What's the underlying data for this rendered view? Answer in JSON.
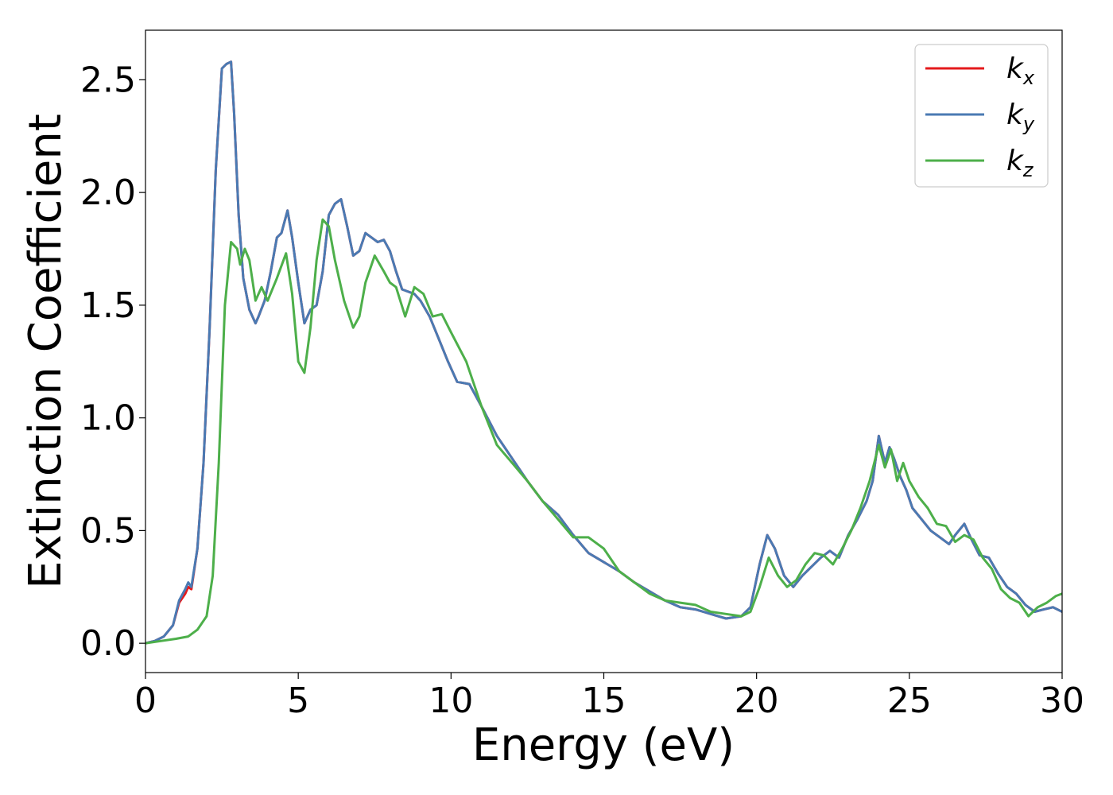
{
  "chart_data": {
    "type": "line",
    "xlabel": "Energy (eV)",
    "ylabel": "Extinction Coefficient",
    "xlim": [
      0,
      30
    ],
    "ylim": [
      -0.13,
      2.72
    ],
    "xticks": [
      0,
      5,
      10,
      15,
      20,
      25,
      30
    ],
    "xtick_labels": [
      "0",
      "5",
      "10",
      "15",
      "20",
      "25",
      "30"
    ],
    "yticks": [
      0.0,
      0.5,
      1.0,
      1.5,
      2.0,
      2.5
    ],
    "ytick_labels": [
      "0.0",
      "0.5",
      "1.0",
      "1.5",
      "2.0",
      "2.5"
    ],
    "grid": false,
    "legend_position": "top-right",
    "series": [
      {
        "name": "k_x",
        "label_main": "k",
        "label_sub": "x",
        "color": "#e41a1c",
        "x": [
          0,
          0.3,
          0.6,
          0.9,
          1.1,
          1.3,
          1.4,
          1.5,
          1.7,
          1.9,
          2.1,
          2.3,
          2.5,
          2.65,
          2.8,
          2.9,
          3.05,
          3.2,
          3.4,
          3.6,
          3.7,
          3.9,
          4.1,
          4.3,
          4.45,
          4.65,
          4.8,
          5.0,
          5.2,
          5.4,
          5.6,
          5.8,
          6.0,
          6.2,
          6.4,
          6.6,
          6.8,
          7.0,
          7.2,
          7.4,
          7.6,
          7.8,
          8.0,
          8.2,
          8.4,
          8.6,
          8.8,
          9.0,
          9.3,
          9.6,
          9.9,
          10.2,
          10.6,
          11.0,
          11.5,
          12.0,
          12.5,
          13.0,
          13.5,
          14.0,
          14.5,
          15.0,
          15.5,
          16.0,
          16.5,
          17.0,
          17.5,
          18.0,
          18.5,
          19.0,
          19.5,
          19.8,
          20.1,
          20.35,
          20.6,
          20.9,
          21.2,
          21.5,
          21.8,
          22.1,
          22.4,
          22.7,
          23.0,
          23.3,
          23.6,
          23.8,
          24.0,
          24.2,
          24.35,
          24.5,
          24.7,
          24.9,
          25.1,
          25.4,
          25.7,
          26.0,
          26.3,
          26.5,
          26.8,
          27.0,
          27.3,
          27.6,
          27.9,
          28.2,
          28.5,
          28.8,
          29.1,
          29.4,
          29.7,
          30.0
        ],
        "y": [
          0.0,
          0.01,
          0.03,
          0.08,
          0.18,
          0.22,
          0.25,
          0.24,
          0.42,
          0.8,
          1.4,
          2.1,
          2.55,
          2.57,
          2.58,
          2.35,
          1.9,
          1.62,
          1.48,
          1.42,
          1.45,
          1.52,
          1.65,
          1.8,
          1.82,
          1.92,
          1.8,
          1.6,
          1.42,
          1.48,
          1.5,
          1.65,
          1.9,
          1.95,
          1.97,
          1.85,
          1.72,
          1.74,
          1.82,
          1.8,
          1.78,
          1.79,
          1.74,
          1.65,
          1.57,
          1.56,
          1.55,
          1.52,
          1.45,
          1.35,
          1.25,
          1.16,
          1.15,
          1.05,
          0.92,
          0.82,
          0.72,
          0.63,
          0.57,
          0.48,
          0.4,
          0.36,
          0.32,
          0.27,
          0.23,
          0.19,
          0.16,
          0.15,
          0.13,
          0.11,
          0.12,
          0.16,
          0.35,
          0.48,
          0.42,
          0.3,
          0.25,
          0.3,
          0.34,
          0.38,
          0.41,
          0.38,
          0.48,
          0.55,
          0.63,
          0.72,
          0.92,
          0.8,
          0.87,
          0.82,
          0.74,
          0.68,
          0.6,
          0.55,
          0.5,
          0.47,
          0.44,
          0.48,
          0.53,
          0.47,
          0.39,
          0.38,
          0.31,
          0.25,
          0.22,
          0.17,
          0.14,
          0.15,
          0.16,
          0.14
        ]
      },
      {
        "name": "k_y",
        "label_main": "k",
        "label_sub": "y",
        "color": "#4a7ab3",
        "x": [
          0,
          0.3,
          0.6,
          0.9,
          1.1,
          1.3,
          1.4,
          1.5,
          1.7,
          1.9,
          2.1,
          2.3,
          2.5,
          2.65,
          2.8,
          2.9,
          3.05,
          3.2,
          3.4,
          3.6,
          3.7,
          3.9,
          4.1,
          4.3,
          4.45,
          4.65,
          4.8,
          5.0,
          5.2,
          5.4,
          5.6,
          5.8,
          6.0,
          6.2,
          6.4,
          6.6,
          6.8,
          7.0,
          7.2,
          7.4,
          7.6,
          7.8,
          8.0,
          8.2,
          8.4,
          8.6,
          8.8,
          9.0,
          9.3,
          9.6,
          9.9,
          10.2,
          10.6,
          11.0,
          11.5,
          12.0,
          12.5,
          13.0,
          13.5,
          14.0,
          14.5,
          15.0,
          15.5,
          16.0,
          16.5,
          17.0,
          17.5,
          18.0,
          18.5,
          19.0,
          19.5,
          19.8,
          20.1,
          20.35,
          20.6,
          20.9,
          21.2,
          21.5,
          21.8,
          22.1,
          22.4,
          22.7,
          23.0,
          23.3,
          23.6,
          23.8,
          24.0,
          24.2,
          24.35,
          24.5,
          24.7,
          24.9,
          25.1,
          25.4,
          25.7,
          26.0,
          26.3,
          26.5,
          26.8,
          27.0,
          27.3,
          27.6,
          27.9,
          28.2,
          28.5,
          28.8,
          29.1,
          29.4,
          29.7,
          30.0
        ],
        "y": [
          0.0,
          0.01,
          0.03,
          0.08,
          0.19,
          0.24,
          0.27,
          0.25,
          0.42,
          0.8,
          1.4,
          2.1,
          2.55,
          2.57,
          2.58,
          2.35,
          1.9,
          1.62,
          1.48,
          1.42,
          1.45,
          1.52,
          1.65,
          1.8,
          1.82,
          1.92,
          1.8,
          1.6,
          1.42,
          1.48,
          1.5,
          1.65,
          1.9,
          1.95,
          1.97,
          1.85,
          1.72,
          1.74,
          1.82,
          1.8,
          1.78,
          1.79,
          1.74,
          1.65,
          1.57,
          1.56,
          1.55,
          1.52,
          1.45,
          1.35,
          1.25,
          1.16,
          1.15,
          1.05,
          0.92,
          0.82,
          0.72,
          0.63,
          0.57,
          0.48,
          0.4,
          0.36,
          0.32,
          0.27,
          0.23,
          0.19,
          0.16,
          0.15,
          0.13,
          0.11,
          0.12,
          0.16,
          0.35,
          0.48,
          0.42,
          0.3,
          0.25,
          0.3,
          0.34,
          0.38,
          0.41,
          0.38,
          0.48,
          0.55,
          0.63,
          0.72,
          0.92,
          0.8,
          0.87,
          0.82,
          0.74,
          0.68,
          0.6,
          0.55,
          0.5,
          0.47,
          0.44,
          0.48,
          0.53,
          0.47,
          0.39,
          0.38,
          0.31,
          0.25,
          0.22,
          0.17,
          0.14,
          0.15,
          0.16,
          0.14
        ]
      },
      {
        "name": "k_z",
        "label_main": "k",
        "label_sub": "z",
        "color": "#4daf4a",
        "x": [
          0,
          0.5,
          1.0,
          1.4,
          1.7,
          2.0,
          2.2,
          2.4,
          2.6,
          2.8,
          3.0,
          3.1,
          3.25,
          3.4,
          3.6,
          3.8,
          4.0,
          4.3,
          4.6,
          4.8,
          5.0,
          5.2,
          5.4,
          5.6,
          5.8,
          6.0,
          6.2,
          6.5,
          6.8,
          7.0,
          7.2,
          7.5,
          7.8,
          8.0,
          8.2,
          8.5,
          8.8,
          9.1,
          9.4,
          9.7,
          10.0,
          10.5,
          11.0,
          11.5,
          12.0,
          12.5,
          13.0,
          13.5,
          14.0,
          14.5,
          15.0,
          15.5,
          16.0,
          16.5,
          17.0,
          17.5,
          18.0,
          18.5,
          19.0,
          19.5,
          19.8,
          20.1,
          20.4,
          20.7,
          21.0,
          21.3,
          21.6,
          21.9,
          22.2,
          22.5,
          22.8,
          23.1,
          23.4,
          23.7,
          24.0,
          24.2,
          24.4,
          24.6,
          24.8,
          25.0,
          25.3,
          25.6,
          25.9,
          26.2,
          26.5,
          26.8,
          27.1,
          27.4,
          27.7,
          28.0,
          28.3,
          28.6,
          28.9,
          29.2,
          29.5,
          29.8,
          30.0
        ],
        "y": [
          0.0,
          0.01,
          0.02,
          0.03,
          0.06,
          0.12,
          0.3,
          0.8,
          1.5,
          1.78,
          1.75,
          1.68,
          1.75,
          1.7,
          1.52,
          1.58,
          1.52,
          1.62,
          1.73,
          1.55,
          1.25,
          1.2,
          1.4,
          1.7,
          1.88,
          1.85,
          1.7,
          1.52,
          1.4,
          1.45,
          1.6,
          1.72,
          1.65,
          1.6,
          1.58,
          1.45,
          1.58,
          1.55,
          1.45,
          1.46,
          1.38,
          1.25,
          1.05,
          0.88,
          0.8,
          0.72,
          0.63,
          0.55,
          0.47,
          0.47,
          0.42,
          0.32,
          0.27,
          0.22,
          0.19,
          0.18,
          0.17,
          0.14,
          0.13,
          0.12,
          0.14,
          0.25,
          0.38,
          0.3,
          0.25,
          0.28,
          0.35,
          0.4,
          0.39,
          0.35,
          0.42,
          0.5,
          0.6,
          0.72,
          0.88,
          0.78,
          0.86,
          0.72,
          0.8,
          0.72,
          0.65,
          0.6,
          0.53,
          0.52,
          0.45,
          0.48,
          0.46,
          0.38,
          0.33,
          0.24,
          0.2,
          0.18,
          0.12,
          0.16,
          0.18,
          0.21,
          0.22
        ]
      }
    ]
  }
}
